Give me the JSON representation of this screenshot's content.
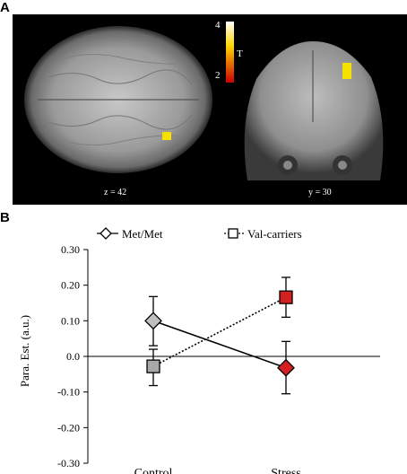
{
  "panel_a": {
    "letter": "A",
    "axial_label": "z = 42",
    "coronal_label": "y = 30",
    "colorbar": {
      "max": "4",
      "min": "2",
      "unit": "T",
      "top_color": "#ffffff",
      "mid_color": "#ffd700",
      "bottom_color": "#cc0000"
    },
    "activation_color": "#f5e000"
  },
  "panel_b": {
    "letter": "B"
  },
  "chart_data": {
    "type": "line",
    "categories": [
      "Control",
      "Stress"
    ],
    "ylabel": "Para. Est. (a.u.)",
    "ylim": [
      -0.3,
      0.3
    ],
    "yticks": [
      "0.30",
      "0.20",
      "0.10",
      "0.0",
      "-0.10",
      "-0.20",
      "-0.30"
    ],
    "series": [
      {
        "name": "Met/Met",
        "marker": "diamond",
        "line": "solid",
        "values": [
          0.1,
          -0.032
        ],
        "err_low": [
          0.03,
          -0.105
        ],
        "err_high": [
          0.168,
          0.042
        ],
        "colors": [
          "#bfbfbf",
          "#d42020"
        ]
      },
      {
        "name": "Val-carriers",
        "marker": "square",
        "line": "dotted",
        "values": [
          -0.028,
          0.166
        ],
        "err_low": [
          -0.082,
          0.11
        ],
        "err_high": [
          0.02,
          0.222
        ],
        "colors": [
          "#a8a8a8",
          "#d42020"
        ]
      }
    ]
  }
}
